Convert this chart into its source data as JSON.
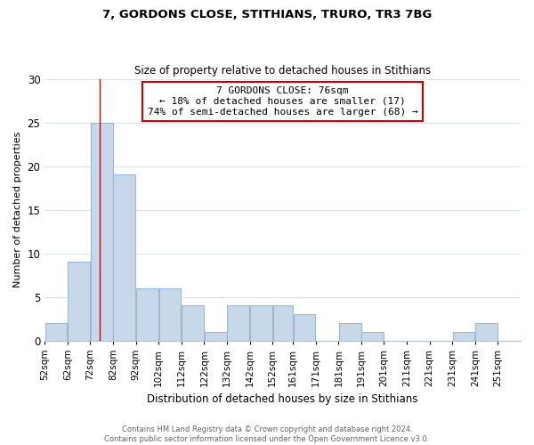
{
  "title": "7, GORDONS CLOSE, STITHIANS, TRURO, TR3 7BG",
  "subtitle": "Size of property relative to detached houses in Stithians",
  "xlabel": "Distribution of detached houses by size in Stithians",
  "ylabel": "Number of detached properties",
  "bin_labels": [
    "52sqm",
    "62sqm",
    "72sqm",
    "82sqm",
    "92sqm",
    "102sqm",
    "112sqm",
    "122sqm",
    "132sqm",
    "142sqm",
    "152sqm",
    "161sqm",
    "171sqm",
    "181sqm",
    "191sqm",
    "201sqm",
    "211sqm",
    "221sqm",
    "231sqm",
    "241sqm",
    "251sqm"
  ],
  "bin_lefts": [
    52,
    62,
    72,
    82,
    92,
    102,
    112,
    122,
    132,
    142,
    152,
    161,
    171,
    181,
    191,
    201,
    211,
    221,
    231,
    241,
    251
  ],
  "bin_widths": [
    10,
    10,
    10,
    10,
    10,
    10,
    10,
    10,
    10,
    10,
    9,
    10,
    10,
    10,
    10,
    10,
    10,
    10,
    10,
    10,
    10
  ],
  "counts": [
    2,
    9,
    25,
    19,
    6,
    6,
    4,
    1,
    4,
    4,
    4,
    3,
    0,
    2,
    1,
    0,
    0,
    0,
    1,
    2,
    0
  ],
  "bar_color": "#c8d8eb",
  "bar_edge_color": "#9ab8d0",
  "reference_line_x": 76,
  "reference_line_color": "#cc0000",
  "annotation_text": "7 GORDONS CLOSE: 76sqm\n← 18% of detached houses are smaller (17)\n74% of semi-detached houses are larger (68) →",
  "annotation_box_color": "#ffffff",
  "annotation_box_edge_color": "#cc0000",
  "ylim": [
    0,
    30
  ],
  "yticks": [
    0,
    5,
    10,
    15,
    20,
    25,
    30
  ],
  "footer_text": "Contains HM Land Registry data © Crown copyright and database right 2024.\nContains public sector information licensed under the Open Government Licence v3.0.",
  "background_color": "#ffffff",
  "grid_color": "#d8e4f0"
}
